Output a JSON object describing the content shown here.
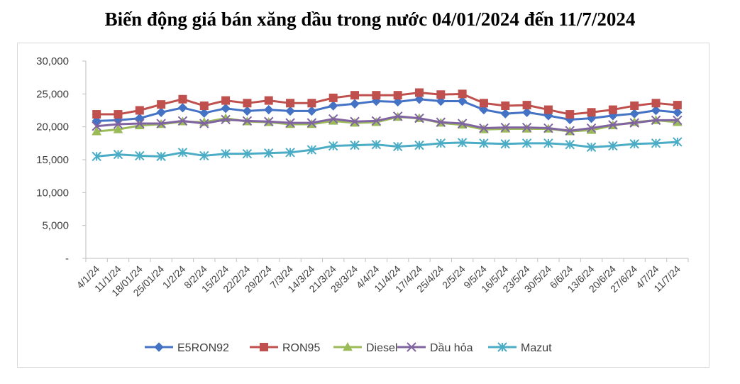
{
  "chart_data": {
    "type": "line",
    "title": "Biến động giá bán xăng dầu trong nước 04/01/2024 đến 11/7/2024",
    "xlabel": "",
    "ylabel": "",
    "ylim": [
      0,
      30000
    ],
    "yticks": [
      0,
      5000,
      10000,
      15000,
      20000,
      25000,
      30000
    ],
    "ytick_labels": [
      "-",
      "5,000",
      "10,000",
      "15,000",
      "20,000",
      "25,000",
      "30,000"
    ],
    "grid": false,
    "legend_position": "bottom",
    "categories": [
      "4/1/24",
      "11/1/24",
      "18/01/24",
      "25/01/24",
      "1/2/24",
      "8/2/24",
      "15/2/24",
      "22/2/24",
      "29/2/24",
      "7/3/24",
      "14/3/24",
      "21/3/24",
      "28/3/24",
      "4/4/24",
      "11/4/24",
      "17/4/24",
      "25/4/24",
      "2/5/24",
      "9/5/24",
      "16/5/24",
      "23/5/24",
      "30/5/24",
      "6/6/24",
      "13/6/24",
      "20/6/24",
      "27/6/24",
      "4/7/24",
      "11/7/24"
    ],
    "series": [
      {
        "name": "E5RON92",
        "color": "#4472c4",
        "marker": "diamond",
        "values": [
          20900,
          21000,
          21300,
          22200,
          22900,
          22100,
          22800,
          22400,
          22600,
          22400,
          22400,
          23200,
          23500,
          23900,
          23800,
          24200,
          23900,
          23900,
          22600,
          22000,
          22200,
          21700,
          21100,
          21300,
          21700,
          22000,
          22500,
          22200
        ]
      },
      {
        "name": "RON95",
        "color": "#c0504d",
        "marker": "square",
        "values": [
          21900,
          21900,
          22500,
          23400,
          24200,
          23200,
          24000,
          23600,
          24000,
          23600,
          23600,
          24400,
          24800,
          24800,
          24800,
          25200,
          24900,
          25000,
          23600,
          23200,
          23300,
          22600,
          21900,
          22200,
          22600,
          23200,
          23600,
          23300
        ]
      },
      {
        "name": "Diesel",
        "color": "#9bbb59",
        "marker": "triangle",
        "values": [
          19300,
          19600,
          20200,
          20400,
          20800,
          20700,
          21300,
          20800,
          20700,
          20400,
          20400,
          20900,
          20600,
          20700,
          21500,
          21300,
          20600,
          20300,
          19600,
          19700,
          19700,
          19700,
          19300,
          19500,
          20200,
          20700,
          21000,
          20700
        ]
      },
      {
        "name": "Dầu hỏa",
        "color": "#8064a2",
        "marker": "x",
        "values": [
          20100,
          20400,
          20500,
          20500,
          20900,
          20500,
          21100,
          20900,
          20800,
          20600,
          20600,
          21200,
          20800,
          20900,
          21600,
          21300,
          20700,
          20500,
          19800,
          19900,
          19900,
          19800,
          19400,
          19800,
          20300,
          20600,
          21000,
          21000
        ]
      },
      {
        "name": "Mazut",
        "color": "#4bacc6",
        "marker": "star",
        "values": [
          15500,
          15800,
          15600,
          15500,
          16100,
          15600,
          15900,
          15900,
          16000,
          16100,
          16500,
          17100,
          17200,
          17300,
          17000,
          17200,
          17500,
          17600,
          17500,
          17400,
          17500,
          17500,
          17300,
          16900,
          17100,
          17400,
          17500,
          17700
        ]
      }
    ]
  }
}
